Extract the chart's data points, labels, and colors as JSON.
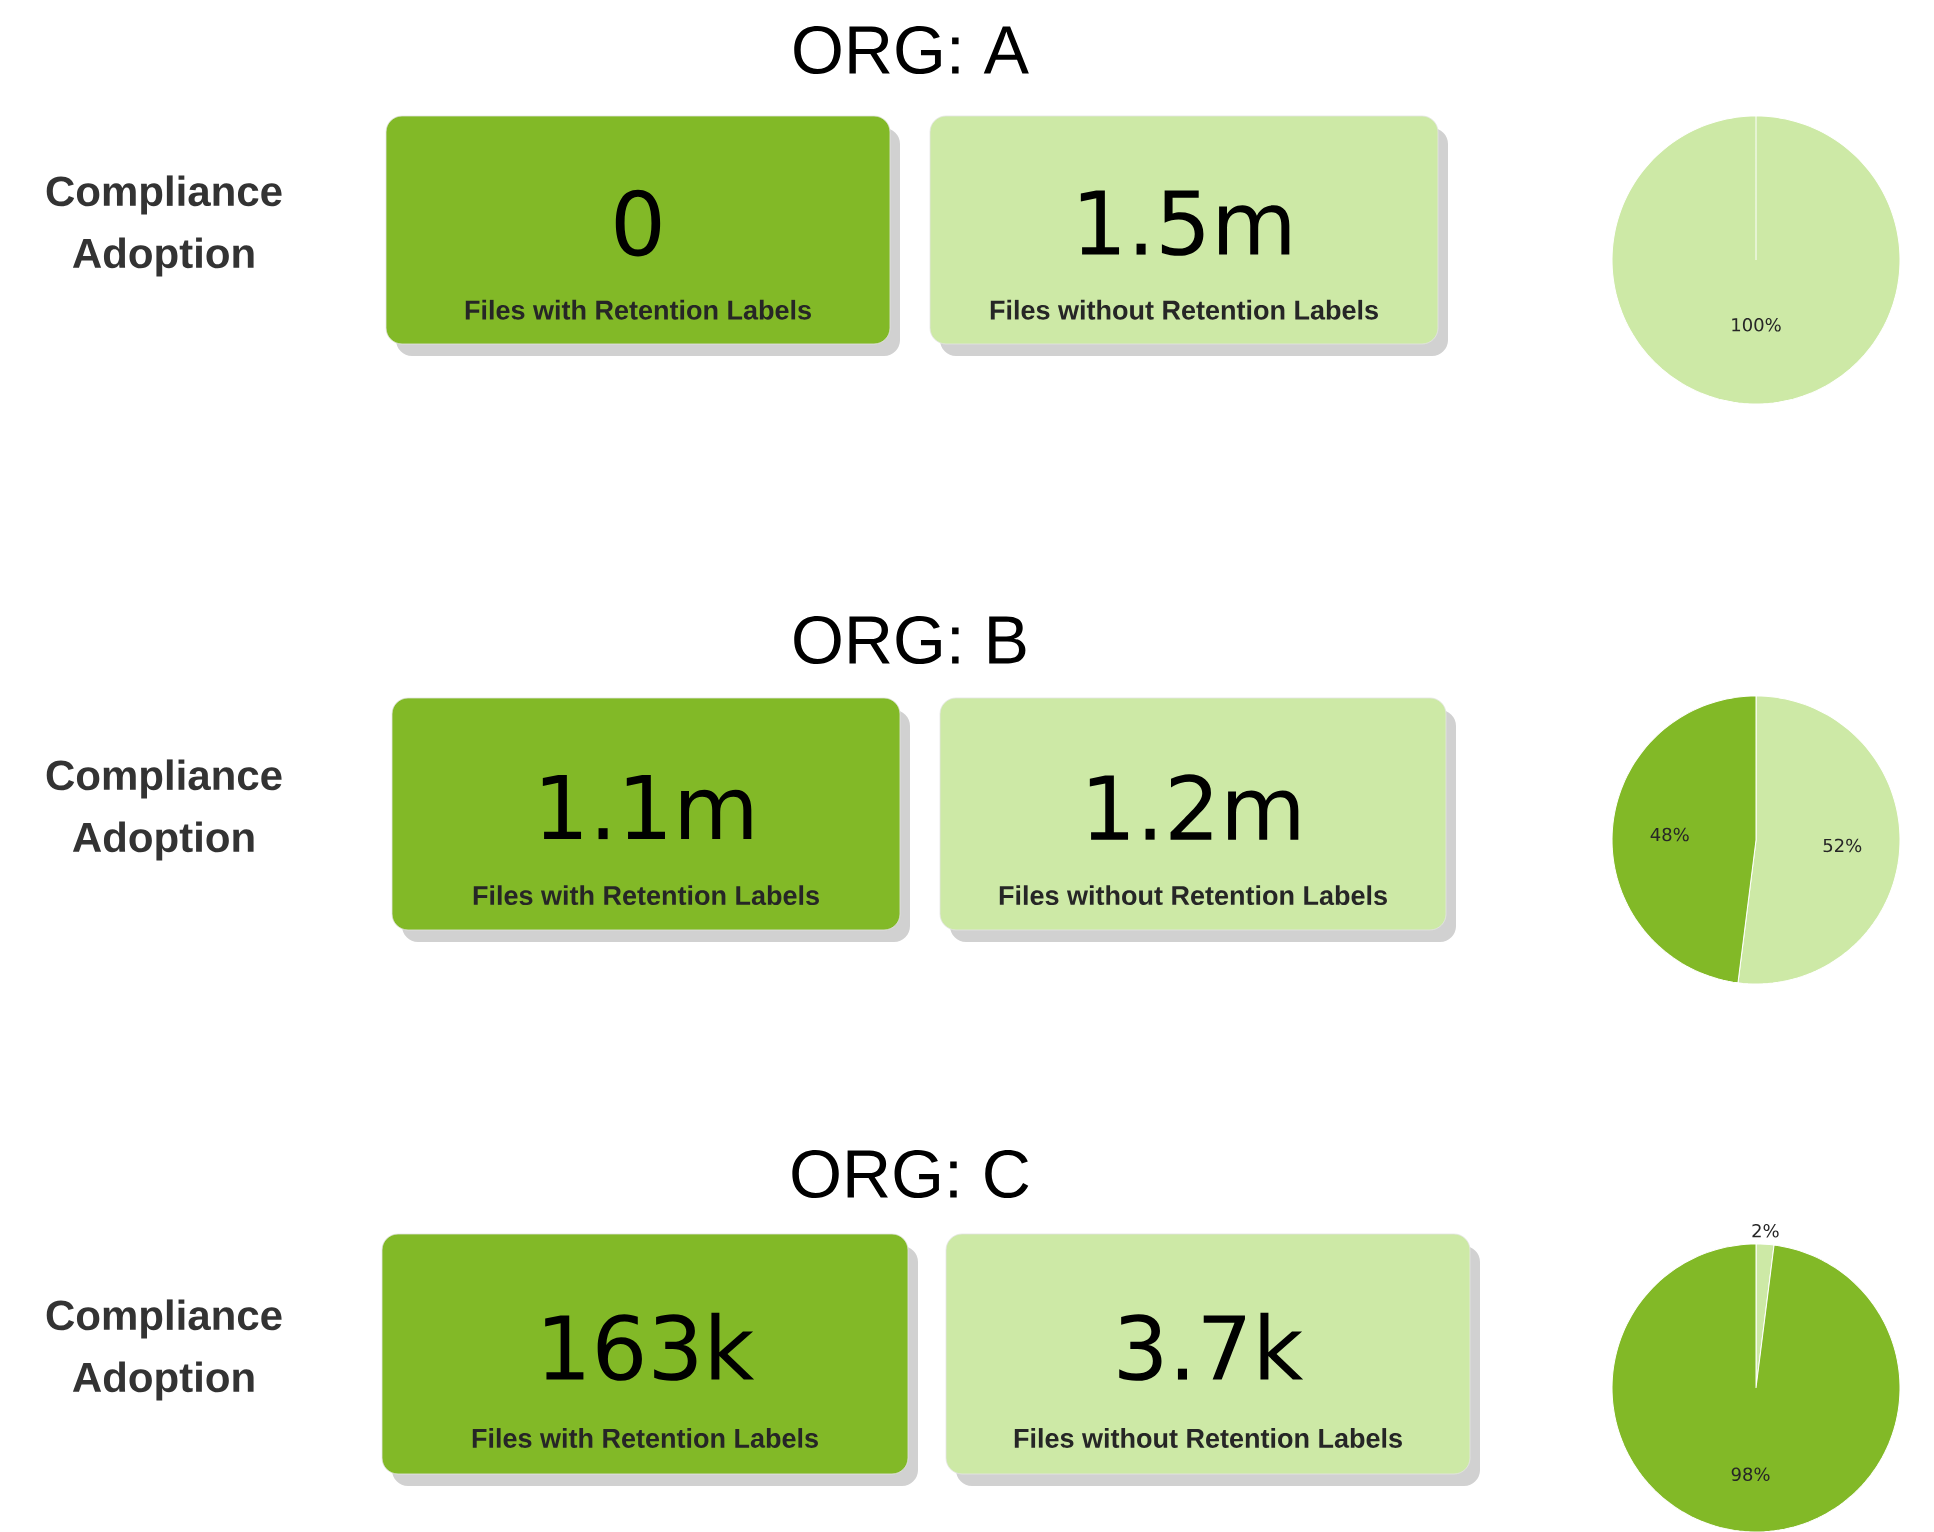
{
  "chart_data": [
    {
      "type": "pie",
      "title": "ORG: A",
      "categories": [
        null,
        null
      ],
      "values": [
        100,
        0
      ],
      "colors": [
        "#cde9a6",
        "#82b927"
      ],
      "value_labels": [
        "100%",
        null
      ],
      "annotations": [
        "Compliance Adoption",
        "0",
        "Files with Retention Labels",
        "1.5m",
        "Files without Retention Labels"
      ]
    },
    {
      "type": "pie",
      "title": "ORG: B",
      "categories": [
        null,
        null
      ],
      "values": [
        52,
        48
      ],
      "colors": [
        "#cde9a6",
        "#82b927"
      ],
      "value_labels": [
        "52%",
        "48%"
      ],
      "annotations": [
        "Compliance Adoption",
        "1.1m",
        "Files with Retention Labels",
        "1.2m",
        "Files without Retention Labels"
      ]
    },
    {
      "type": "pie",
      "title": "ORG: C",
      "categories": [
        null,
        null
      ],
      "values": [
        2,
        98
      ],
      "colors": [
        "#cde9a6",
        "#82b927"
      ],
      "value_labels": [
        "2%",
        "98%"
      ],
      "annotations": [
        "Compliance Adoption",
        "163k",
        "Files with Retention Labels",
        "3.7k",
        "Files without Retention Labels"
      ]
    }
  ]
}
